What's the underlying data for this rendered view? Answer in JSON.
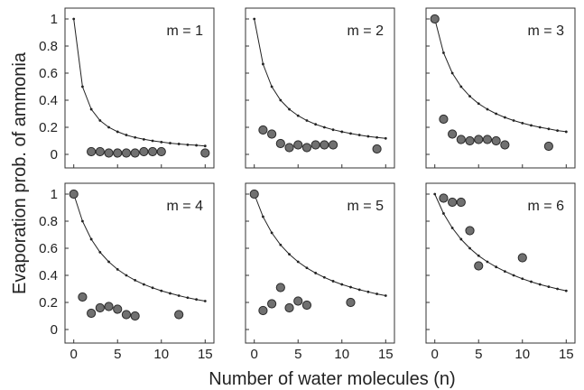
{
  "chart_data": {
    "type": "scatter",
    "layout": "2x3 small multiples",
    "xlabel": "Number of water molecules (n)",
    "ylabel": "Evaporation prob. of ammonia",
    "xlim": [
      -1,
      16
    ],
    "ylim": [
      -0.1,
      1.08
    ],
    "xticks": [
      "0",
      "5",
      "10",
      "15"
    ],
    "yticks": [
      "0",
      "0.2",
      "0.4",
      "0.6",
      "0.8",
      "1"
    ],
    "grid": false,
    "colors": {
      "marker_fill": "#707070",
      "marker_edge": "#2a2a2a",
      "line": "#222222"
    },
    "panels": [
      {
        "label": "m = 1",
        "m": 1,
        "points": {
          "x": [
            2,
            3,
            4,
            5,
            6,
            7,
            8,
            9,
            10,
            15
          ],
          "y": [
            0.02,
            0.02,
            0.01,
            0.01,
            0.01,
            0.01,
            0.02,
            0.02,
            0.02,
            0.01
          ]
        },
        "curve": {
          "x": [
            0,
            1,
            2,
            3,
            4,
            5,
            6,
            7,
            8,
            9,
            10,
            11,
            12,
            13,
            14,
            15
          ],
          "y": [
            1.0,
            0.5,
            0.333,
            0.25,
            0.2,
            0.167,
            0.143,
            0.125,
            0.111,
            0.1,
            0.091,
            0.083,
            0.077,
            0.071,
            0.067,
            0.062
          ]
        }
      },
      {
        "label": "m = 2",
        "m": 2,
        "points": {
          "x": [
            1,
            2,
            3,
            4,
            5,
            6,
            7,
            8,
            9,
            14
          ],
          "y": [
            0.18,
            0.15,
            0.08,
            0.05,
            0.07,
            0.05,
            0.07,
            0.07,
            0.07,
            0.04
          ]
        },
        "curve": {
          "x": [
            0,
            1,
            2,
            3,
            4,
            5,
            6,
            7,
            8,
            9,
            10,
            11,
            12,
            13,
            14,
            15
          ],
          "y": [
            1.0,
            0.667,
            0.5,
            0.4,
            0.333,
            0.286,
            0.25,
            0.222,
            0.2,
            0.182,
            0.167,
            0.154,
            0.143,
            0.133,
            0.125,
            0.118
          ]
        }
      },
      {
        "label": "m = 3",
        "m": 3,
        "points": {
          "x": [
            0,
            1,
            2,
            3,
            4,
            5,
            6,
            7,
            8,
            13
          ],
          "y": [
            1.0,
            0.26,
            0.15,
            0.11,
            0.1,
            0.11,
            0.11,
            0.1,
            0.07,
            0.06
          ]
        },
        "curve": {
          "x": [
            0,
            1,
            2,
            3,
            4,
            5,
            6,
            7,
            8,
            9,
            10,
            11,
            12,
            13,
            14,
            15
          ],
          "y": [
            1.0,
            0.75,
            0.6,
            0.5,
            0.429,
            0.375,
            0.333,
            0.3,
            0.273,
            0.25,
            0.231,
            0.214,
            0.2,
            0.188,
            0.176,
            0.167
          ]
        }
      },
      {
        "label": "m = 4",
        "m": 4,
        "points": {
          "x": [
            0,
            1,
            2,
            3,
            4,
            5,
            6,
            7,
            12
          ],
          "y": [
            1.0,
            0.24,
            0.12,
            0.16,
            0.17,
            0.15,
            0.11,
            0.1,
            0.11
          ]
        },
        "curve": {
          "x": [
            0,
            1,
            2,
            3,
            4,
            5,
            6,
            7,
            8,
            9,
            10,
            11,
            12,
            13,
            14,
            15
          ],
          "y": [
            1.0,
            0.8,
            0.667,
            0.571,
            0.5,
            0.444,
            0.4,
            0.364,
            0.333,
            0.308,
            0.286,
            0.267,
            0.25,
            0.235,
            0.222,
            0.21
          ]
        }
      },
      {
        "label": "m = 5",
        "m": 5,
        "points": {
          "x": [
            0,
            1,
            2,
            3,
            4,
            5,
            6,
            11
          ],
          "y": [
            1.0,
            0.14,
            0.19,
            0.31,
            0.16,
            0.21,
            0.18,
            0.2
          ]
        },
        "curve": {
          "x": [
            0,
            1,
            2,
            3,
            4,
            5,
            6,
            7,
            8,
            9,
            10,
            11,
            12,
            13,
            14,
            15
          ],
          "y": [
            1.0,
            0.833,
            0.714,
            0.625,
            0.556,
            0.5,
            0.455,
            0.417,
            0.385,
            0.357,
            0.333,
            0.313,
            0.294,
            0.278,
            0.263,
            0.25
          ]
        }
      },
      {
        "label": "m = 6",
        "m": 6,
        "points": {
          "x": [
            1,
            2,
            3,
            4,
            5,
            10
          ],
          "y": [
            0.97,
            0.94,
            0.94,
            0.73,
            0.47,
            0.53
          ]
        },
        "curve": {
          "x": [
            0,
            1,
            2,
            3,
            4,
            5,
            6,
            7,
            8,
            9,
            10,
            11,
            12,
            13,
            14,
            15
          ],
          "y": [
            1.0,
            0.857,
            0.75,
            0.667,
            0.6,
            0.545,
            0.5,
            0.462,
            0.429,
            0.4,
            0.375,
            0.353,
            0.333,
            0.316,
            0.3,
            0.286
          ]
        }
      }
    ]
  }
}
